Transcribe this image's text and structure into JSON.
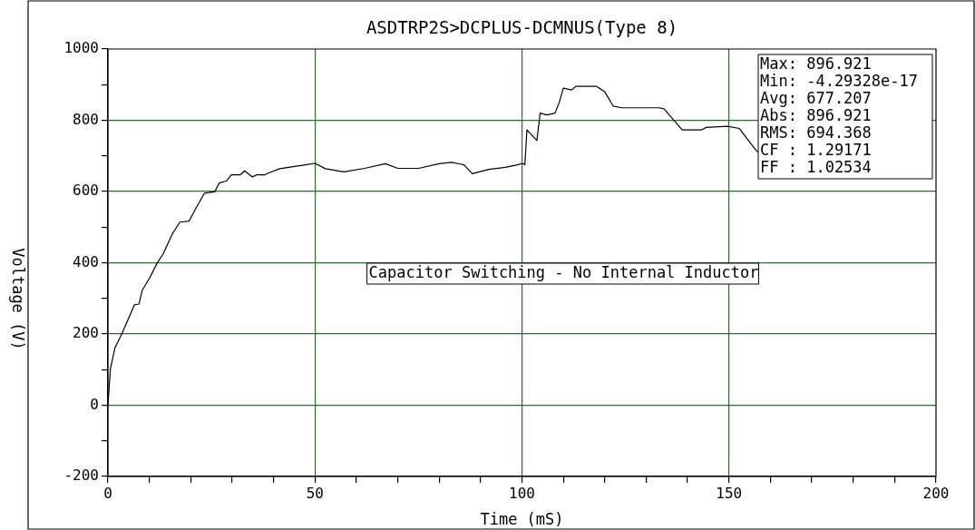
{
  "chart_data": {
    "type": "line",
    "title": "ASDTRP2S>DCPLUS-DCMNUS(Type 8)",
    "xlabel": "Time (mS)",
    "ylabel": "Voltage (V)",
    "xlim": [
      0,
      200
    ],
    "xticks": [
      0,
      {
        "value": 10,
        "label": null
      },
      {
        "value": 20,
        "label": null
      },
      {
        "value": 30,
        "label": null
      },
      {
        "value": 40,
        "label": null
      },
      50,
      {
        "value": 60,
        "label": null
      },
      {
        "value": 70,
        "label": null
      },
      {
        "value": 80,
        "label": null
      },
      {
        "value": 90,
        "label": null
      },
      100,
      {
        "value": 110,
        "label": null
      },
      {
        "value": 120,
        "label": null
      },
      {
        "value": 130,
        "label": null
      },
      {
        "value": 140,
        "label": null
      },
      150,
      {
        "value": 160,
        "label": null
      },
      {
        "value": 170,
        "label": null
      },
      {
        "value": 180,
        "label": null
      },
      {
        "value": 190,
        "label": null
      },
      200
    ],
    "ylim": [
      -200,
      1000
    ],
    "yticks": [
      -200,
      {
        "value": -100,
        "label": null
      },
      0,
      {
        "value": 100,
        "label": null
      },
      200,
      {
        "value": 300,
        "label": null
      },
      400,
      {
        "value": 500,
        "label": null
      },
      600,
      {
        "value": 700,
        "label": null
      },
      800,
      {
        "value": 900,
        "label": null
      },
      1000
    ],
    "grid": true,
    "legend": false,
    "marker": "none",
    "line_style": "solid",
    "series": [
      {
        "color": "#000000",
        "x": [
          0,
          0.6,
          1.7,
          3.5,
          6.4,
          7.5,
          8.3,
          10.1,
          11.9,
          13.4,
          15.6,
          17.4,
          19.6,
          21.4,
          23.3,
          25.8,
          26.9,
          28.7,
          29.8,
          32,
          33,
          34.9,
          36,
          37.9,
          39,
          41.5,
          44.4,
          47.7,
          50,
          52.5,
          57,
          62,
          67,
          70,
          75,
          80,
          83,
          86,
          88,
          92,
          96,
          98.9,
          100.1,
          100.7,
          101.2,
          103.6,
          104.4,
          106,
          108,
          109,
          110,
          112,
          113,
          118,
          120,
          122,
          124,
          133,
          134.3,
          138.7,
          143.4,
          144.5,
          149.6,
          152.5,
          156.1,
          157
        ],
        "values": [
          0,
          102,
          161,
          204,
          282,
          284,
          323,
          358,
          399,
          426,
          482,
          514,
          517,
          556,
          595,
          599,
          624,
          630,
          647,
          647,
          658,
          641,
          647,
          647,
          653,
          664,
          669,
          675,
          679,
          664,
          655,
          665,
          678,
          665,
          665,
          678,
          682,
          675,
          650,
          662,
          668,
          675,
          679,
          675,
          773,
          743,
          820,
          815,
          820,
          850,
          890,
          885,
          895,
          895,
          880,
          840,
          835,
          835,
          832,
          773,
          773,
          780,
          783,
          777,
          722,
          710
        ]
      }
    ],
    "annotations": [
      "Capacitor Switching - No Internal Inductor",
      "Max: 896.921\nMin: -4.29328e-17\nAvg: 677.207\nAbs: 896.921\nRMS: 694.368\nCF : 1.29171\nFF : 1.02534"
    ]
  }
}
